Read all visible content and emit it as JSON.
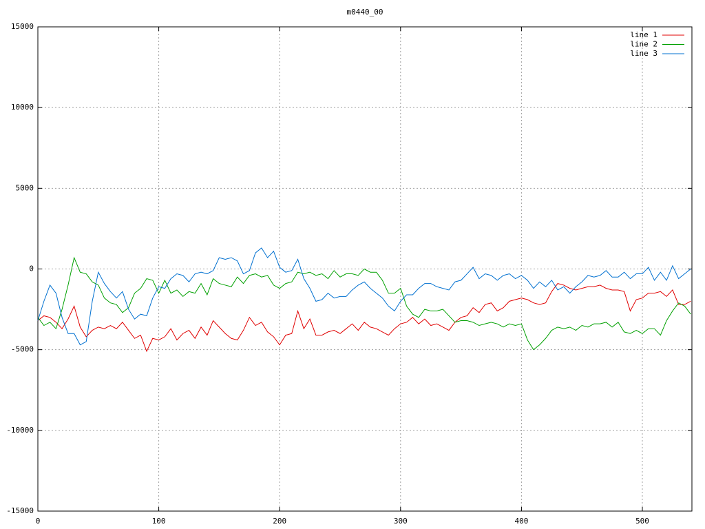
{
  "chart_data": {
    "type": "line",
    "title": "m0440_00",
    "x": [
      0,
      5,
      10,
      15,
      20,
      25,
      30,
      35,
      40,
      45,
      50,
      55,
      60,
      65,
      70,
      75,
      80,
      85,
      90,
      95,
      100,
      105,
      110,
      115,
      120,
      125,
      130,
      135,
      140,
      145,
      150,
      155,
      160,
      165,
      170,
      175,
      180,
      185,
      190,
      195,
      200,
      205,
      210,
      215,
      220,
      225,
      230,
      235,
      240,
      245,
      250,
      255,
      260,
      265,
      270,
      275,
      280,
      285,
      290,
      295,
      300,
      305,
      310,
      315,
      320,
      325,
      330,
      335,
      340,
      345,
      350,
      355,
      360,
      365,
      370,
      375,
      380,
      385,
      390,
      395,
      400,
      405,
      410,
      415,
      420,
      425,
      430,
      435,
      440,
      445,
      450,
      455,
      460,
      465,
      470,
      475,
      480,
      485,
      490,
      495,
      500,
      505,
      510,
      515,
      520,
      525,
      530,
      535,
      540
    ],
    "series": [
      {
        "name": "line 1",
        "color": "#e00000",
        "values": [
          -3200,
          -2900,
          -3000,
          -3300,
          -3700,
          -3100,
          -2300,
          -3600,
          -4200,
          -3800,
          -3600,
          -3700,
          -3500,
          -3700,
          -3300,
          -3800,
          -4300,
          -4100,
          -5100,
          -4300,
          -4400,
          -4200,
          -3700,
          -4400,
          -4000,
          -3800,
          -4300,
          -3600,
          -4100,
          -3200,
          -3600,
          -4000,
          -4300,
          -4400,
          -3800,
          -3000,
          -3500,
          -3300,
          -3900,
          -4200,
          -4700,
          -4100,
          -4000,
          -2600,
          -3700,
          -3100,
          -4100,
          -4100,
          -3900,
          -3800,
          -4000,
          -3700,
          -3400,
          -3800,
          -3300,
          -3600,
          -3700,
          -3900,
          -4100,
          -3700,
          -3400,
          -3300,
          -3000,
          -3400,
          -3100,
          -3500,
          -3400,
          -3600,
          -3800,
          -3300,
          -3000,
          -2900,
          -2400,
          -2700,
          -2200,
          -2100,
          -2600,
          -2400,
          -2000,
          -1900,
          -1800,
          -1900,
          -2100,
          -2200,
          -2100,
          -1400,
          -900,
          -1000,
          -1200,
          -1300,
          -1200,
          -1100,
          -1100,
          -1000,
          -1200,
          -1300,
          -1300,
          -1400,
          -2600,
          -1900,
          -1800,
          -1500,
          -1500,
          -1400,
          -1700,
          -1300,
          -2200,
          -2200,
          -2000
        ]
      },
      {
        "name": "line 2",
        "color": "#00a000",
        "values": [
          -3000,
          -3500,
          -3300,
          -3700,
          -2500,
          -1000,
          700,
          -200,
          -300,
          -800,
          -1000,
          -1800,
          -2100,
          -2200,
          -2700,
          -2400,
          -1500,
          -1200,
          -600,
          -700,
          -1500,
          -700,
          -1500,
          -1300,
          -1700,
          -1400,
          -1500,
          -900,
          -1600,
          -600,
          -900,
          -1000,
          -1100,
          -500,
          -900,
          -400,
          -300,
          -500,
          -400,
          -1000,
          -1200,
          -900,
          -800,
          -200,
          -300,
          -200,
          -400,
          -300,
          -600,
          -100,
          -500,
          -300,
          -300,
          -400,
          0,
          -200,
          -200,
          -700,
          -1500,
          -1500,
          -1200,
          -2300,
          -2800,
          -3000,
          -2500,
          -2600,
          -2600,
          -2500,
          -2900,
          -3300,
          -3200,
          -3200,
          -3300,
          -3500,
          -3400,
          -3300,
          -3400,
          -3600,
          -3400,
          -3500,
          -3400,
          -4400,
          -5000,
          -4700,
          -4300,
          -3800,
          -3600,
          -3700,
          -3600,
          -3800,
          -3500,
          -3600,
          -3400,
          -3400,
          -3300,
          -3600,
          -3300,
          -3900,
          -4000,
          -3800,
          -4000,
          -3700,
          -3700,
          -4100,
          -3200,
          -2600,
          -2100,
          -2300,
          -2800
        ]
      },
      {
        "name": "line 3",
        "color": "#0070d0",
        "values": [
          -3200,
          -2000,
          -1000,
          -1500,
          -3000,
          -4000,
          -4000,
          -4700,
          -4500,
          -2000,
          -200,
          -900,
          -1400,
          -1800,
          -1400,
          -2500,
          -3100,
          -2800,
          -2900,
          -1800,
          -1100,
          -1200,
          -600,
          -300,
          -400,
          -800,
          -300,
          -200,
          -300,
          -100,
          700,
          600,
          700,
          500,
          -300,
          -100,
          1000,
          1300,
          700,
          1100,
          100,
          -200,
          -100,
          600,
          -600,
          -1200,
          -2000,
          -1900,
          -1500,
          -1800,
          -1700,
          -1700,
          -1300,
          -1000,
          -800,
          -1200,
          -1500,
          -1800,
          -2300,
          -2600,
          -2000,
          -1600,
          -1600,
          -1200,
          -900,
          -900,
          -1100,
          -1200,
          -1300,
          -800,
          -700,
          -300,
          100,
          -600,
          -300,
          -400,
          -700,
          -400,
          -300,
          -600,
          -400,
          -700,
          -1200,
          -800,
          -1100,
          -700,
          -1300,
          -1100,
          -1500,
          -1100,
          -800,
          -400,
          -500,
          -400,
          -100,
          -500,
          -500,
          -200,
          -600,
          -300,
          -300,
          100,
          -700,
          -200,
          -700,
          200,
          -600,
          -300,
          0
        ]
      }
    ],
    "xlim": [
      0,
      541
    ],
    "ylim": [
      -15000,
      15000
    ],
    "xticks": [
      0,
      100,
      200,
      300,
      400,
      500
    ],
    "yticks": [
      -15000,
      -10000,
      -5000,
      0,
      5000,
      10000,
      15000
    ],
    "grid": true,
    "legend": "top-right"
  }
}
